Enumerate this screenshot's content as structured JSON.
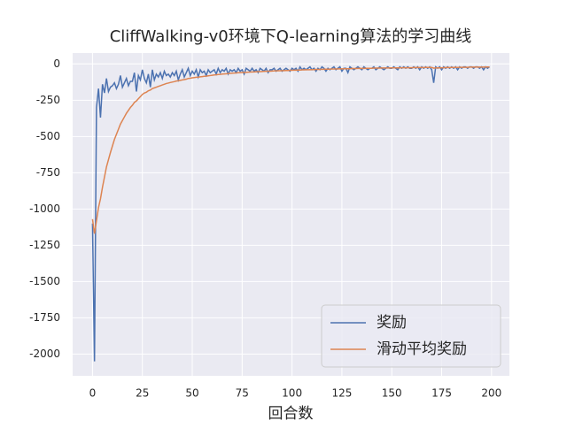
{
  "chart_data": {
    "type": "line",
    "title": "CliffWalking-v0环境下Q-learning算法的学习曲线",
    "x_label": "回合数",
    "x": [
      0,
      1,
      2,
      3,
      4,
      5,
      6,
      7,
      8,
      9,
      10,
      11,
      12,
      13,
      14,
      15,
      16,
      17,
      18,
      19,
      20,
      21,
      22,
      23,
      24,
      25,
      26,
      27,
      28,
      29,
      30,
      31,
      32,
      33,
      34,
      35,
      36,
      37,
      38,
      39,
      40,
      41,
      42,
      43,
      44,
      45,
      46,
      47,
      48,
      49,
      50,
      51,
      52,
      53,
      54,
      55,
      56,
      57,
      58,
      59,
      60,
      61,
      62,
      63,
      64,
      65,
      66,
      67,
      68,
      69,
      70,
      71,
      72,
      73,
      74,
      75,
      76,
      77,
      78,
      79,
      80,
      81,
      82,
      83,
      84,
      85,
      86,
      87,
      88,
      89,
      90,
      91,
      92,
      93,
      94,
      95,
      96,
      97,
      98,
      99,
      100,
      101,
      102,
      103,
      104,
      105,
      106,
      107,
      108,
      109,
      110,
      111,
      112,
      113,
      114,
      115,
      116,
      117,
      118,
      119,
      120,
      121,
      122,
      123,
      124,
      125,
      126,
      127,
      128,
      129,
      130,
      131,
      132,
      133,
      134,
      135,
      136,
      137,
      138,
      139,
      140,
      141,
      142,
      143,
      144,
      145,
      146,
      147,
      148,
      149,
      150,
      151,
      152,
      153,
      154,
      155,
      156,
      157,
      158,
      159,
      160,
      161,
      162,
      163,
      164,
      165,
      166,
      167,
      168,
      169,
      170,
      171,
      172,
      173,
      174,
      175,
      176,
      177,
      178,
      179,
      180,
      181,
      182,
      183,
      184,
      185,
      186,
      187,
      188,
      189,
      190,
      191,
      192,
      193,
      194,
      195,
      196,
      197,
      198,
      199
    ],
    "series": [
      {
        "name": "奖励",
        "color": "#4c72b0",
        "values": [
          -1100,
          -2050,
          -300,
          -170,
          -370,
          -140,
          -200,
          -100,
          -190,
          -160,
          -150,
          -130,
          -170,
          -140,
          -80,
          -160,
          -130,
          -100,
          -150,
          -120,
          -120,
          -60,
          -190,
          -80,
          -110,
          -40,
          -100,
          -130,
          -70,
          -160,
          -40,
          -110,
          -70,
          -90,
          -60,
          -100,
          -50,
          -80,
          -70,
          -90,
          -60,
          -80,
          -50,
          -110,
          -70,
          -40,
          -90,
          -60,
          -30,
          -80,
          -50,
          -70,
          -40,
          -90,
          -40,
          -60,
          -50,
          -80,
          -40,
          -60,
          -50,
          -40,
          -70,
          -30,
          -60,
          -40,
          -50,
          -30,
          -70,
          -40,
          -50,
          -40,
          -60,
          -30,
          -50,
          -40,
          -70,
          -30,
          -40,
          -50,
          -30,
          -50,
          -40,
          -60,
          -30,
          -40,
          -50,
          -30,
          -60,
          -40,
          -40,
          -30,
          -50,
          -40,
          -30,
          -50,
          -40,
          -30,
          -40,
          -50,
          -30,
          -40,
          -30,
          -50,
          -20,
          -40,
          -30,
          -40,
          -30,
          -20,
          -40,
          -30,
          -50,
          -30,
          -40,
          -20,
          -30,
          -50,
          -30,
          -40,
          -30,
          -20,
          -40,
          -30,
          -20,
          -50,
          -30,
          -30,
          -60,
          -20,
          -30,
          -40,
          -30,
          -20,
          -30,
          -40,
          -20,
          -30,
          -40,
          -30,
          -30,
          -20,
          -40,
          -30,
          -20,
          -30,
          -40,
          -30,
          -20,
          -30,
          -30,
          -20,
          -30,
          -40,
          -20,
          -30,
          -20,
          -30,
          -20,
          -30,
          -30,
          -20,
          -30,
          -20,
          -40,
          -20,
          -30,
          -20,
          -30,
          -20,
          -40,
          -130,
          -20,
          -30,
          -20,
          -40,
          -20,
          -30,
          -20,
          -30,
          -20,
          -30,
          -20,
          -40,
          -20,
          -30,
          -20,
          -20,
          -30,
          -20,
          -20,
          -30,
          -20,
          -20,
          -30,
          -20,
          -40,
          -20,
          -30,
          -20
        ]
      },
      {
        "name": "滑动平均奖励",
        "color": "#dd8452",
        "values": [
          -1070,
          -1170,
          -1080,
          -990,
          -930,
          -850,
          -780,
          -710,
          -660,
          -610,
          -565,
          -520,
          -485,
          -450,
          -415,
          -390,
          -365,
          -340,
          -320,
          -300,
          -285,
          -265,
          -255,
          -240,
          -225,
          -210,
          -200,
          -195,
          -185,
          -180,
          -170,
          -165,
          -160,
          -155,
          -150,
          -145,
          -140,
          -135,
          -132,
          -128,
          -125,
          -122,
          -118,
          -116,
          -113,
          -110,
          -108,
          -105,
          -100,
          -99,
          -96,
          -94,
          -92,
          -91,
          -89,
          -87,
          -85,
          -84,
          -82,
          -80,
          -78,
          -76,
          -75,
          -73,
          -72,
          -70,
          -69,
          -68,
          -66,
          -65,
          -64,
          -63,
          -62,
          -61,
          -60,
          -59,
          -58,
          -58,
          -57,
          -56,
          -55,
          -55,
          -54,
          -53,
          -53,
          -52,
          -51,
          -51,
          -50,
          -50,
          -49,
          -48,
          -48,
          -47,
          -47,
          -46,
          -46,
          -45,
          -45,
          -44,
          -44,
          -43,
          -43,
          -42,
          -42,
          -41,
          -41,
          -40,
          -40,
          -40,
          -39,
          -39,
          -38,
          -38,
          -38,
          -37,
          -37,
          -36,
          -36,
          -36,
          -35,
          -35,
          -35,
          -34,
          -34,
          -34,
          -33,
          -33,
          -33,
          -33,
          -32,
          -32,
          -32,
          -31,
          -31,
          -31,
          -31,
          -30,
          -30,
          -30,
          -30,
          -29,
          -29,
          -29,
          -29,
          -28,
          -28,
          -28,
          -28,
          -28,
          -27,
          -27,
          -27,
          -27,
          -27,
          -26,
          -26,
          -26,
          -26,
          -26,
          -26,
          -25,
          -25,
          -25,
          -25,
          -25,
          -25,
          -24,
          -24,
          -24,
          -24,
          -29,
          -28,
          -27,
          -27,
          -26,
          -26,
          -25,
          -25,
          -25,
          -24,
          -24,
          -24,
          -24,
          -23,
          -23,
          -23,
          -23,
          -23,
          -22,
          -22,
          -22,
          -22,
          -22,
          -22,
          -22,
          -22,
          -21,
          -21,
          -21
        ]
      }
    ],
    "xlim": [
      -9.95,
      208.95
    ],
    "xticks": [
      0,
      25,
      50,
      75,
      100,
      125,
      150,
      175,
      200
    ],
    "ylim": [
      -2150,
      75
    ],
    "yticks": [
      0,
      -250,
      -500,
      -750,
      -1000,
      -1250,
      -1500,
      -1750,
      -2000
    ],
    "grid": true,
    "legend": "lower right"
  }
}
